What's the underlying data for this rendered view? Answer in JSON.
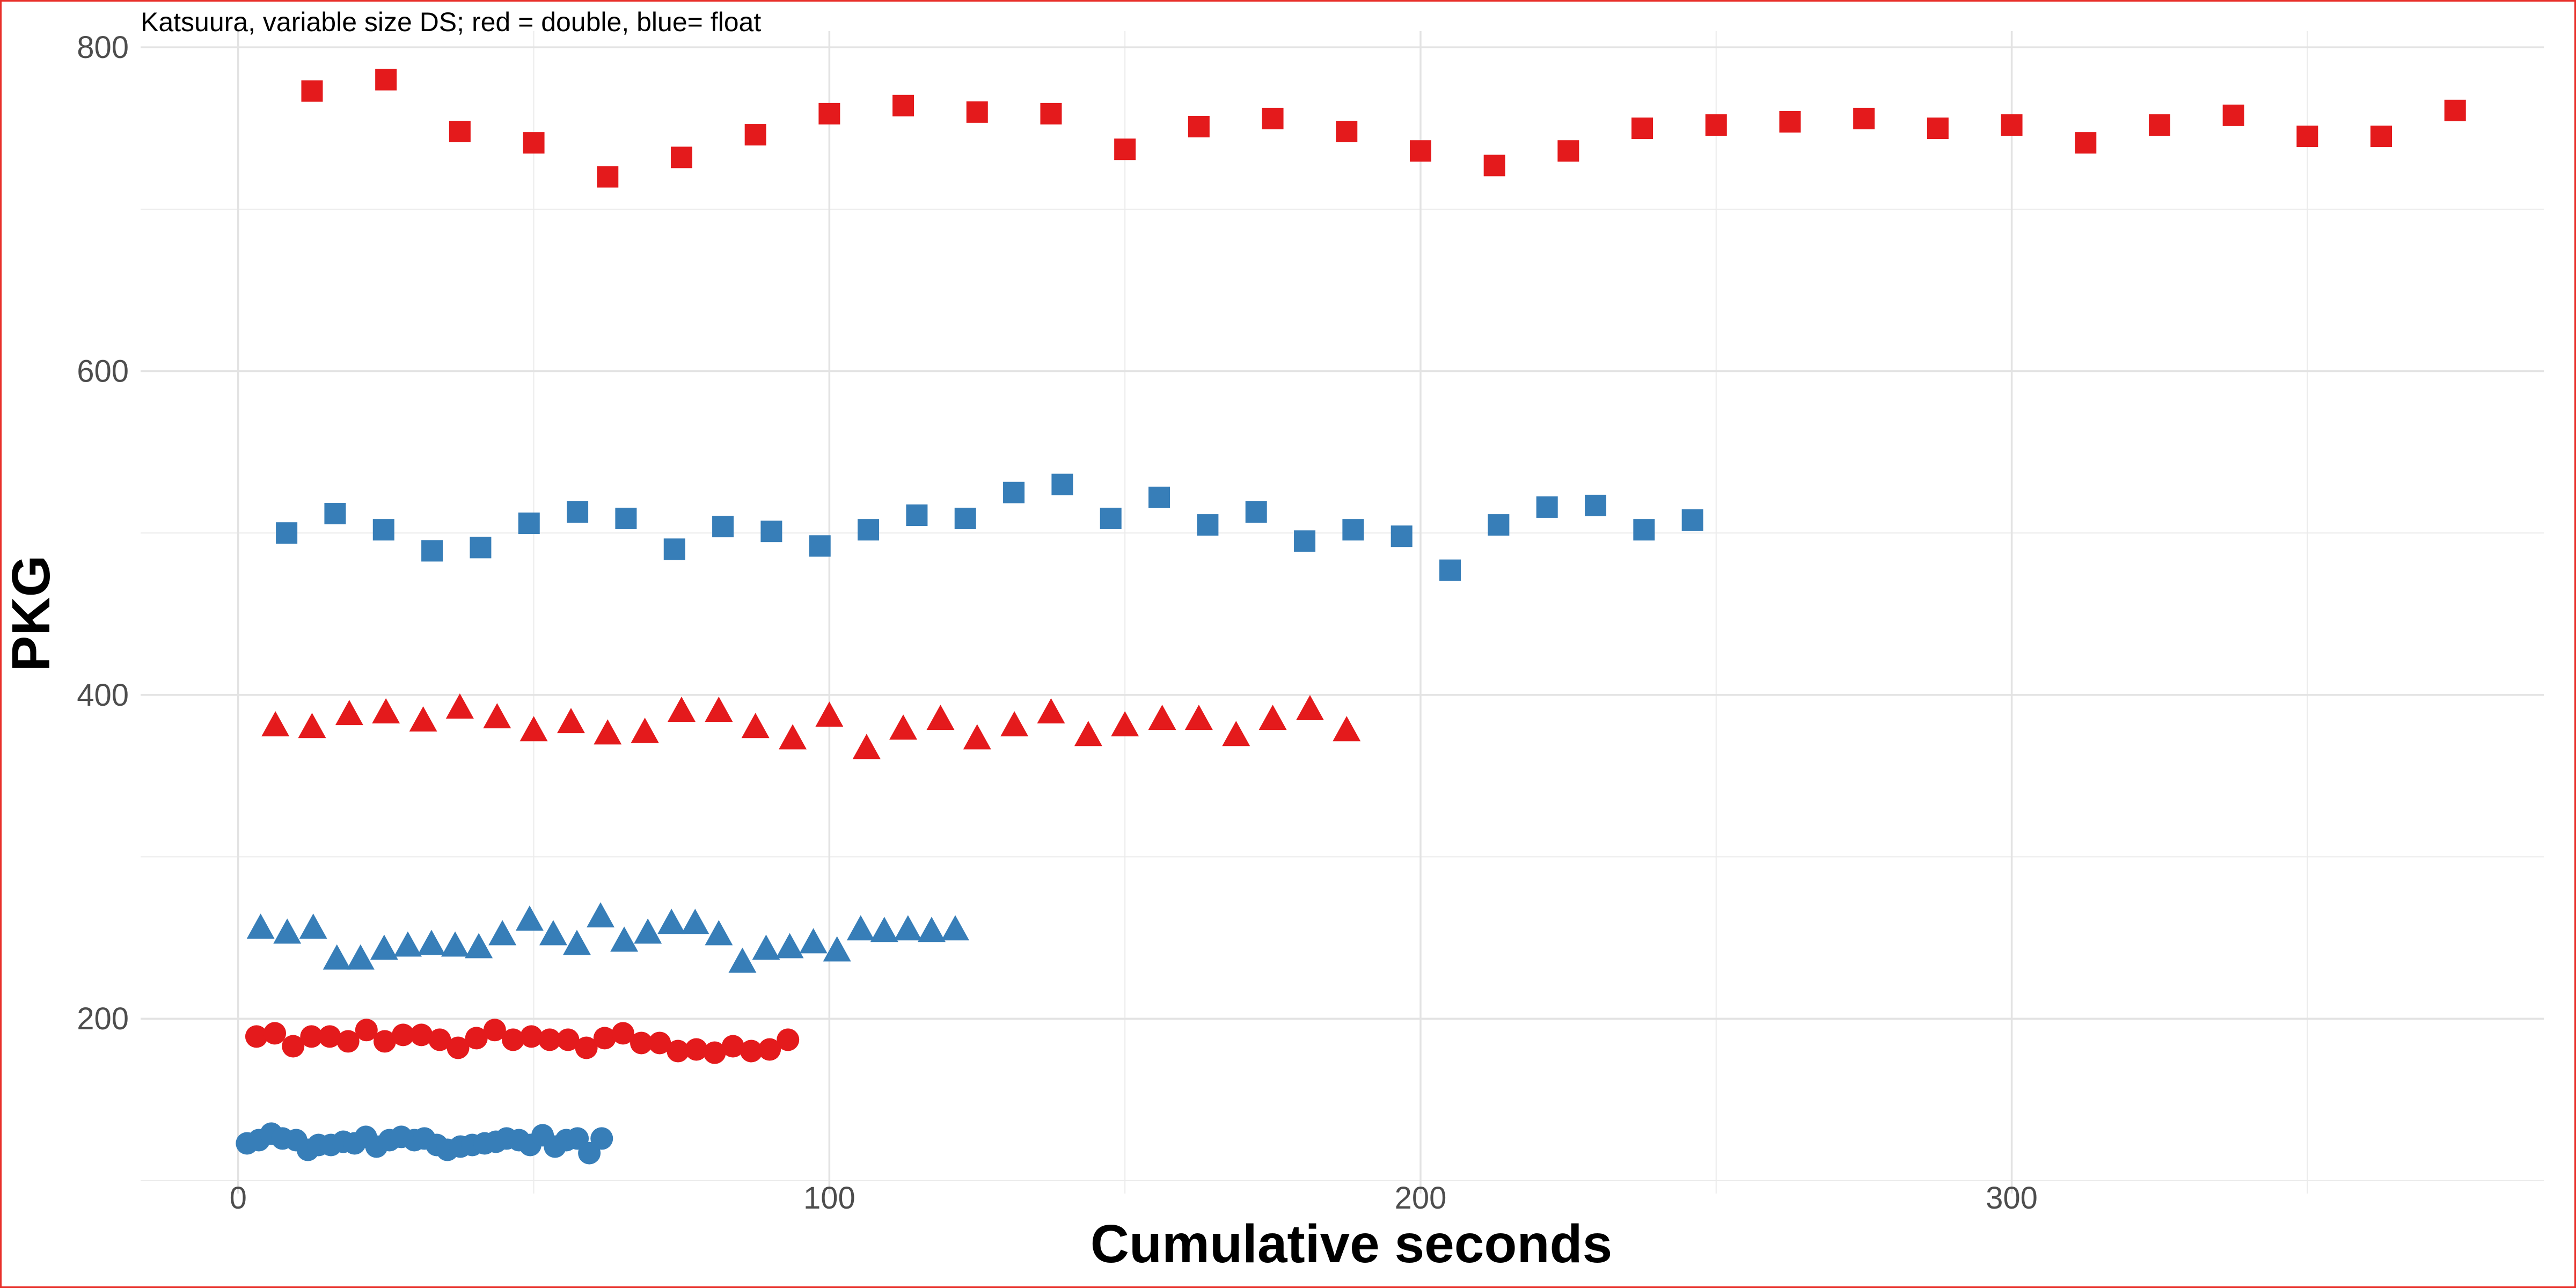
{
  "chart_data": {
    "type": "scatter",
    "title": "Katsuura, variable size DS; red = double, blue= float",
    "xlabel": "Cumulative seconds",
    "ylabel": "PKG",
    "xlim": [
      -16.5,
      390
    ],
    "ylim": [
      92,
      810
    ],
    "x_ticks": [
      0,
      100,
      200,
      300
    ],
    "x_minor": [
      50,
      150,
      250,
      350
    ],
    "y_ticks": [
      200,
      400,
      600,
      800
    ],
    "y_minor": [
      100,
      300,
      500,
      700
    ],
    "grid": true,
    "legend": "none",
    "colors": {
      "double": "#e41a1c",
      "float": "#377eb8"
    },
    "series": [
      {
        "color": "#e41a1c",
        "shape": "square",
        "x": [
          12.5,
          25,
          37.5,
          50,
          62.5,
          75,
          87.5,
          100,
          112.5,
          125,
          137.5,
          150,
          162.5,
          175,
          187.5,
          200,
          212.5,
          225,
          237.5,
          250,
          262.5,
          275,
          287.5,
          300,
          312.5,
          325,
          337.5,
          350,
          362.5,
          375
        ],
        "y": [
          773,
          780,
          748,
          741,
          720,
          732,
          746,
          759,
          764,
          760,
          759,
          737,
          751,
          756,
          748,
          736,
          727,
          736,
          750,
          752,
          754,
          756,
          750,
          752,
          741,
          752,
          758,
          745,
          745,
          761
        ]
      },
      {
        "color": "#377eb8",
        "shape": "square",
        "x": [
          8.2,
          16.4,
          24.6,
          32.8,
          41,
          49.2,
          57.4,
          65.6,
          73.8,
          82,
          90.2,
          98.4,
          106.6,
          114.8,
          123,
          131.2,
          139.4,
          147.6,
          155.8,
          164,
          172.2,
          180.4,
          188.6,
          196.8,
          205,
          213.2,
          221.4,
          229.6,
          237.8,
          246
        ],
        "y": [
          500,
          512,
          502,
          489,
          491,
          506,
          513,
          509,
          490,
          504,
          501,
          492,
          502,
          511,
          509,
          525,
          530,
          509,
          522,
          505,
          513,
          495,
          502,
          498,
          477,
          505,
          516,
          517,
          502,
          508
        ]
      },
      {
        "color": "#e41a1c",
        "shape": "triangle",
        "x": [
          6.3,
          12.5,
          18.8,
          25,
          31.3,
          37.5,
          43.8,
          50,
          56.3,
          62.5,
          68.8,
          75,
          81.3,
          87.5,
          93.8,
          100,
          106.3,
          112.5,
          118.8,
          125,
          131.3,
          137.5,
          143.8,
          150,
          156.3,
          162.5,
          168.8,
          175,
          181.3,
          187.5
        ],
        "y": [
          380,
          379,
          387,
          388,
          383,
          391,
          385,
          377,
          382,
          375,
          376,
          389,
          389,
          379,
          372,
          386,
          366,
          378,
          384,
          372,
          380,
          388,
          374,
          380,
          384,
          384,
          374,
          384,
          390,
          377
        ]
      },
      {
        "color": "#377eb8",
        "shape": "triangle",
        "x": [
          3.8,
          8.3,
          12.7,
          16.7,
          20.7,
          24.7,
          28.7,
          32.7,
          36.7,
          40.7,
          44.7,
          49.3,
          53.3,
          57.3,
          61.3,
          65.3,
          69.3,
          73.3,
          77.3,
          81.3,
          85.3,
          89.3,
          93.3,
          97.3,
          101.3,
          105.3,
          109.3,
          113.3,
          117.3,
          121.3
        ],
        "y": [
          255,
          252,
          255,
          236,
          236,
          242,
          244,
          245,
          244,
          243,
          251,
          260,
          251,
          245,
          262,
          247,
          252,
          258,
          258,
          251,
          234,
          242,
          243,
          246,
          241,
          254,
          253,
          254,
          253,
          254
        ]
      },
      {
        "color": "#e41a1c",
        "shape": "circle",
        "x": [
          3.1,
          6.2,
          9.3,
          12.4,
          15.5,
          18.6,
          21.7,
          24.8,
          27.9,
          31,
          34.1,
          37.2,
          40.3,
          43.4,
          46.5,
          49.6,
          52.7,
          55.8,
          58.9,
          62,
          65.1,
          68.2,
          71.3,
          74.4,
          77.5,
          80.6,
          83.7,
          86.8,
          89.9,
          93
        ],
        "y": [
          189,
          191,
          183,
          189,
          189,
          186,
          193,
          186,
          190,
          190,
          187,
          182,
          188,
          193,
          187,
          189,
          187,
          187,
          182,
          188,
          191,
          185,
          185,
          180,
          181,
          179,
          183,
          180,
          181,
          187
        ]
      },
      {
        "color": "#377eb8",
        "shape": "circle",
        "x": [
          1.5,
          3.5,
          5.6,
          7.5,
          9.8,
          11.8,
          13.6,
          15.7,
          17.8,
          19.7,
          21.6,
          23.4,
          25.6,
          27.6,
          29.8,
          31.5,
          33.6,
          35.4,
          37.6,
          39.6,
          41.7,
          43.6,
          45.4,
          47.5,
          49.4,
          51.5,
          53.6,
          55.5,
          57.4,
          59.4,
          61.5
        ],
        "y": [
          123,
          125,
          129,
          126,
          125,
          119,
          122,
          122,
          124,
          123,
          127,
          121,
          125,
          127,
          125,
          126,
          122,
          119,
          121,
          122,
          123,
          124,
          126,
          125,
          122,
          128,
          121,
          125,
          126,
          117,
          126
        ]
      }
    ]
  }
}
